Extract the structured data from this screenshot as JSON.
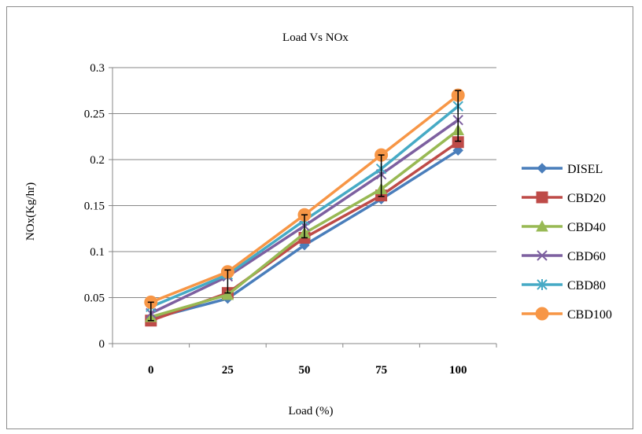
{
  "chart_data": {
    "type": "line",
    "title": "Load Vs NOx",
    "xlabel": "Load (%)",
    "ylabel": "NOx(Kg/hr)",
    "categories": [
      "0",
      "25",
      "50",
      "75",
      "100"
    ],
    "ylim": [
      0,
      0.3
    ],
    "yticks": [
      "0",
      "0.05",
      "0.1",
      "0.15",
      "0.2",
      "0.25",
      "0.3"
    ],
    "ytick_values": [
      0,
      0.05,
      0.1,
      0.15,
      0.2,
      0.25,
      0.3
    ],
    "grid": "horizontal",
    "legend_position": "right",
    "series": [
      {
        "name": "DISEL",
        "color": "#4a7ebb",
        "marker": "diamond",
        "values": [
          0.027,
          0.049,
          0.107,
          0.157,
          0.21
        ]
      },
      {
        "name": "CBD20",
        "color": "#be4b48",
        "marker": "square",
        "values": [
          0.025,
          0.055,
          0.115,
          0.161,
          0.219
        ]
      },
      {
        "name": "CBD40",
        "color": "#98b954",
        "marker": "triangle",
        "values": [
          0.029,
          0.053,
          0.12,
          0.168,
          0.232
        ]
      },
      {
        "name": "CBD60",
        "color": "#7d60a0",
        "marker": "x",
        "values": [
          0.033,
          0.073,
          0.128,
          0.184,
          0.243
        ]
      },
      {
        "name": "CBD80",
        "color": "#46aac5",
        "marker": "star",
        "values": [
          0.04,
          0.075,
          0.134,
          0.19,
          0.258
        ]
      },
      {
        "name": "CBD100",
        "color": "#f79646",
        "marker": "circle",
        "values": [
          0.045,
          0.078,
          0.14,
          0.205,
          0.27
        ]
      }
    ],
    "error_bars": {
      "color": "#000000",
      "low": [
        0.025,
        0.055,
        0.115,
        0.16,
        0.22
      ],
      "high": [
        0.045,
        0.08,
        0.14,
        0.205,
        0.275
      ]
    }
  }
}
